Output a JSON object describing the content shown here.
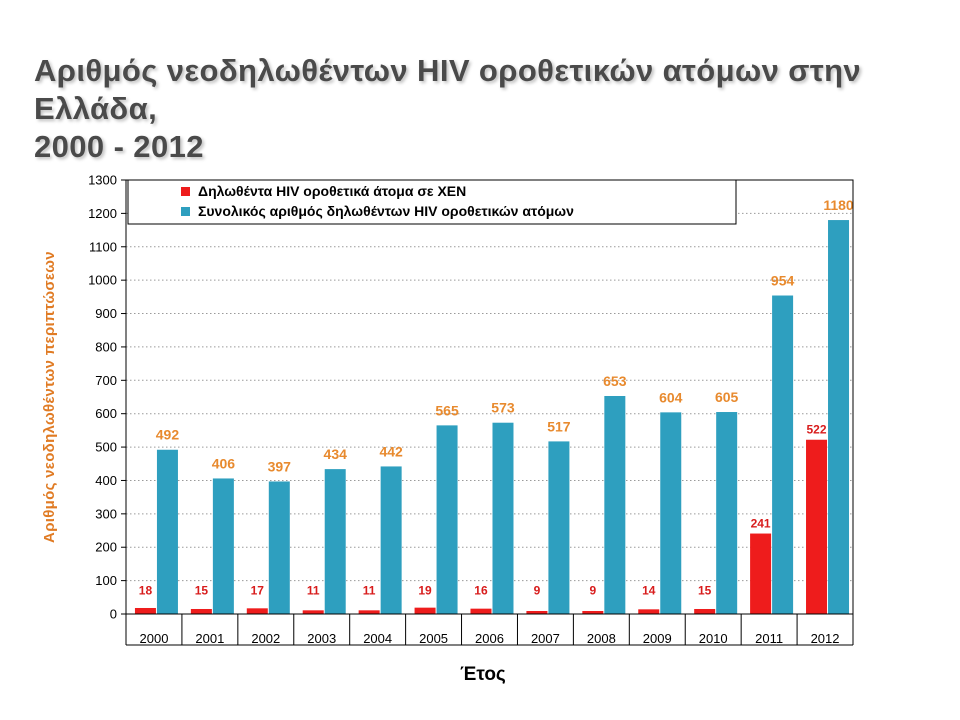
{
  "title_line1": "Αριθμός νεοδηλωθέντων HIV οροθετικών ατόμων στην Ελλάδα,",
  "title_line2": "2000 - 2012",
  "colors": {
    "red": "#ee1c1c",
    "blue": "#2e9fbf",
    "red_label": "#d81c1c",
    "blue_label": "#e88a2e",
    "ylabel": "#e07b24"
  },
  "chart_data": {
    "type": "bar",
    "categories": [
      "2000",
      "2001",
      "2002",
      "2003",
      "2004",
      "2005",
      "2006",
      "2007",
      "2008",
      "2009",
      "2010",
      "2011",
      "2012"
    ],
    "series": [
      {
        "name": "Δηλωθέντα HIV οροθετικά άτομα σε ΧΕΝ",
        "values": [
          18,
          15,
          17,
          11,
          11,
          19,
          16,
          9,
          9,
          14,
          15,
          241,
          522
        ]
      },
      {
        "name": "Συνολικός αριθμός δηλωθέντων HIV οροθετικών ατόμων",
        "values": [
          492,
          406,
          397,
          434,
          442,
          565,
          573,
          517,
          653,
          604,
          605,
          954,
          1180
        ]
      }
    ],
    "xlabel": "Έτος",
    "ylabel": "Αριθμός νεοδηλωθέντων περιπτώσεων",
    "ylim": [
      0,
      1300
    ],
    "yticks": [
      0,
      100,
      200,
      300,
      400,
      500,
      600,
      700,
      800,
      900,
      1000,
      1100,
      1200,
      1300
    ],
    "grid": "horizontal-dotted",
    "legend_position": "top-left"
  }
}
